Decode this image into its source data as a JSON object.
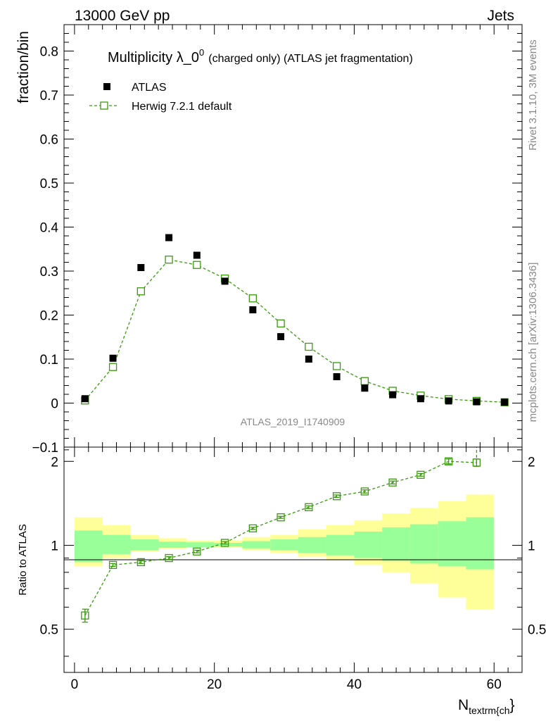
{
  "header": {
    "left": "13000 GeV pp",
    "right": "Jets"
  },
  "side_texts": {
    "rivet": "Rivet 3.1.10,  3M events",
    "mcplots": "mcplots.cern.ch [arXiv:1306.3436]"
  },
  "colors": {
    "data": "#000000",
    "mc": "#3a9a0e",
    "band_inner": "#99ff99",
    "band_outer": "#ffff99"
  },
  "chart_data": [
    {
      "type": "scatter",
      "panel": "main",
      "title": "Multiplicity λ_0",
      "title_sup": "0",
      "title_suffix": "(charged only) (ATLAS jet fragmentation)",
      "ylabel": "fraction/bin",
      "analysis_label": "ATLAS_2019_I1740909",
      "xlim": [
        -1.5,
        64
      ],
      "ylim": [
        -0.1,
        0.86
      ],
      "y_ticks": [
        -0.1,
        0,
        0.1,
        0.2,
        0.3,
        0.4,
        0.5,
        0.6,
        0.7,
        0.8
      ],
      "y_tick_labels": [
        "−0.1",
        "0",
        "0.1",
        "0.2",
        "0.3",
        "0.4",
        "0.5",
        "0.6",
        "0.7",
        "0.8"
      ],
      "x_ticks": [
        0,
        20,
        40,
        60
      ],
      "x_tick_labels": [
        "0",
        "20",
        "40",
        "60"
      ],
      "legend_position": "top-left",
      "series": [
        {
          "name": "ATLAS",
          "style": "filled-square",
          "x": [
            1.5,
            5.5,
            9.5,
            13.5,
            17.5,
            21.5,
            25.5,
            29.5,
            33.5,
            37.5,
            41.5,
            45.5,
            49.5,
            53.5,
            57.5,
            61.5
          ],
          "y": [
            0.01,
            0.102,
            0.308,
            0.376,
            0.336,
            0.277,
            0.212,
            0.151,
            0.1,
            0.06,
            0.034,
            0.019,
            0.01,
            0.005,
            0.003,
            0.002
          ]
        },
        {
          "name": "Herwig 7.2.1 default",
          "style": "open-square-dashed",
          "x": [
            1.5,
            5.5,
            9.5,
            13.5,
            17.5,
            21.5,
            25.5,
            29.5,
            33.5,
            37.5,
            41.5,
            45.5,
            49.5,
            53.5,
            57.5,
            61.5
          ],
          "y": [
            0.006,
            0.082,
            0.254,
            0.326,
            0.314,
            0.283,
            0.238,
            0.181,
            0.128,
            0.084,
            0.05,
            0.028,
            0.017,
            0.009,
            0.005,
            0.002
          ]
        }
      ]
    },
    {
      "type": "scatter",
      "panel": "ratio",
      "ylabel": "Ratio to ATLAS",
      "xlabel": "N",
      "xlabel_sub": "textrm{ch",
      "xlabel_end": "}",
      "xlim": [
        -1.5,
        64
      ],
      "ylim": [
        0.35,
        2.25
      ],
      "y_ticks": [
        0.5,
        1,
        2
      ],
      "y_tick_labels": [
        "0.5",
        "1",
        "2"
      ],
      "x_ticks": [
        0,
        20,
        40,
        60
      ],
      "x_tick_labels": [
        "0",
        "20",
        "40",
        "60"
      ],
      "band_edges": [
        0,
        4,
        8,
        12,
        16,
        20,
        24,
        28,
        32,
        36,
        40,
        44,
        48,
        52,
        56,
        60
      ],
      "band_inner": [
        [
          0.87,
          1.13
        ],
        [
          0.93,
          1.09
        ],
        [
          0.96,
          1.05
        ],
        [
          0.98,
          1.03
        ],
        [
          0.985,
          1.025
        ],
        [
          0.99,
          1.02
        ],
        [
          0.975,
          1.035
        ],
        [
          0.96,
          1.05
        ],
        [
          0.94,
          1.07
        ],
        [
          0.92,
          1.09
        ],
        [
          0.9,
          1.12
        ],
        [
          0.88,
          1.16
        ],
        [
          0.86,
          1.19
        ],
        [
          0.84,
          1.22
        ],
        [
          0.82,
          1.26
        ]
      ],
      "band_outer": [
        [
          0.84,
          1.26
        ],
        [
          0.9,
          1.18
        ],
        [
          0.95,
          1.09
        ],
        [
          0.97,
          1.06
        ],
        [
          0.98,
          1.04
        ],
        [
          0.98,
          1.04
        ],
        [
          0.96,
          1.07
        ],
        [
          0.94,
          1.09
        ],
        [
          0.91,
          1.14
        ],
        [
          0.89,
          1.18
        ],
        [
          0.85,
          1.23
        ],
        [
          0.8,
          1.3
        ],
        [
          0.73,
          1.36
        ],
        [
          0.65,
          1.44
        ],
        [
          0.59,
          1.52
        ]
      ],
      "series": [
        {
          "name": "Herwig 7.2.1 default / ATLAS",
          "x": [
            1.5,
            5.5,
            9.5,
            13.5,
            17.5,
            21.5,
            25.5,
            29.5,
            33.5,
            37.5,
            41.5,
            45.5,
            49.5,
            53.5,
            57.5
          ],
          "y": [
            0.56,
            0.85,
            0.87,
            0.9,
            0.95,
            1.02,
            1.15,
            1.26,
            1.37,
            1.5,
            1.56,
            1.68,
            1.79,
            2.0,
            1.98
          ],
          "yerr": [
            0.03,
            0.01,
            0.01,
            0.01,
            0.01,
            0.01,
            0.01,
            0.01,
            0.015,
            0.015,
            0.02,
            0.02,
            0.02,
            0.04,
            0.06
          ],
          "off_scale_next": 61.5
        }
      ]
    }
  ]
}
